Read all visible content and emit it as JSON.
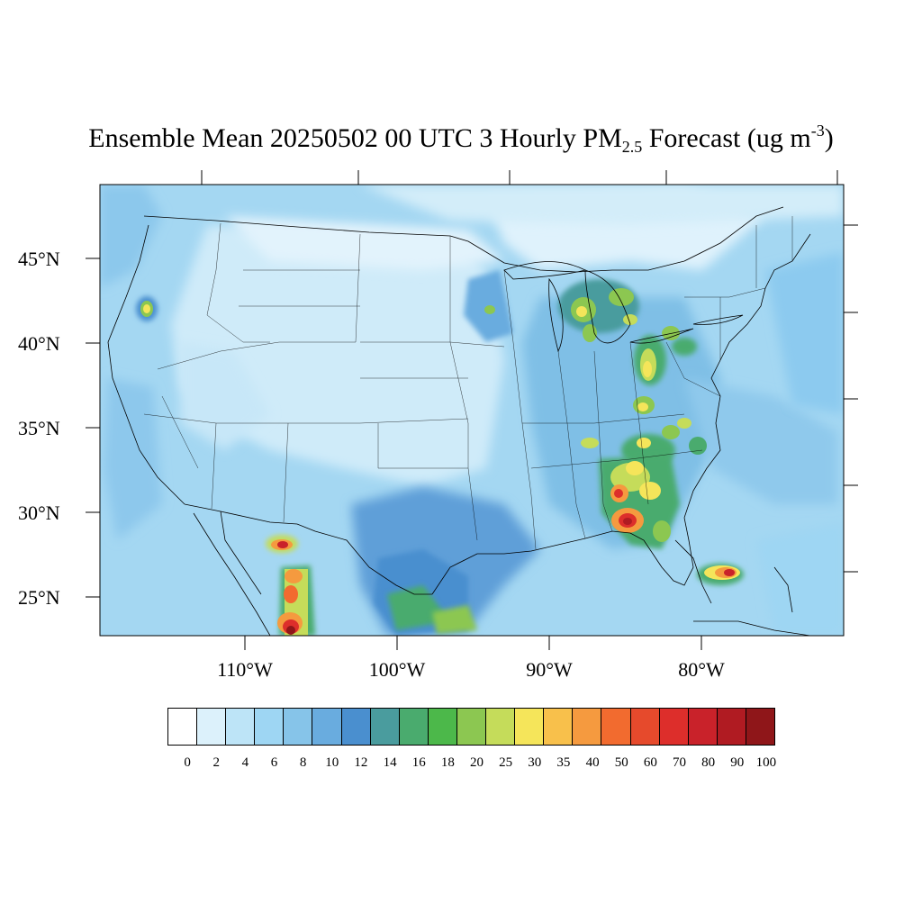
{
  "title": {
    "prefix": "Ensemble Mean 20250502 00 UTC 3 Hourly PM",
    "subscript": "2.5",
    "middle": " Forecast (ug m",
    "superscript": "-3",
    "suffix": ")"
  },
  "map": {
    "projection": "lambert-conformal",
    "region": "Contiguous United States",
    "lat_labels": [
      "45°N",
      "40°N",
      "35°N",
      "30°N",
      "25°N"
    ],
    "lon_labels": [
      "110°W",
      "100°W",
      "90°W",
      "80°W"
    ],
    "background_field_color": "#b8e0f5",
    "hotspots": [
      {
        "name": "Oregon",
        "peak": "25"
      },
      {
        "name": "Northern Michigan",
        "peak": "25"
      },
      {
        "name": "Southwest Michigan",
        "peak": "25"
      },
      {
        "name": "Wisconsin",
        "peak": "18"
      },
      {
        "name": "Ohio / Indiana",
        "peak": "30"
      },
      {
        "name": "Kentucky",
        "peak": "30"
      },
      {
        "name": "Tennessee",
        "peak": "25"
      },
      {
        "name": "Carolinas",
        "peak": "25"
      },
      {
        "name": "Georgia / Alabama",
        "peak": "50"
      },
      {
        "name": "Northern Florida",
        "peak": "70"
      },
      {
        "name": "Southern Florida",
        "peak": "80"
      },
      {
        "name": "Sierra Madre, Mexico",
        "peak": "100"
      },
      {
        "name": "Northern Mexico (Chihuahua)",
        "peak": "70"
      },
      {
        "name": "South Texas / Gulf coast",
        "peak": "20"
      }
    ]
  },
  "colorbar": {
    "labels": [
      "0",
      "2",
      "4",
      "6",
      "8",
      "10",
      "12",
      "14",
      "16",
      "18",
      "20",
      "25",
      "30",
      "35",
      "40",
      "50",
      "60",
      "70",
      "80",
      "90",
      "100"
    ],
    "colors": [
      "#ffffff",
      "#dcf1fb",
      "#bde4f7",
      "#9ed6f3",
      "#86c4e9",
      "#69acdf",
      "#4a8fcf",
      "#4a9c9e",
      "#4aab6e",
      "#4cb84a",
      "#8cc751",
      "#c5dc5a",
      "#f5e55a",
      "#f8c04b",
      "#f59a3f",
      "#f26b2f",
      "#e64a2c",
      "#dd2e2b",
      "#c9222a",
      "#b01b22",
      "#8f1619"
    ]
  }
}
